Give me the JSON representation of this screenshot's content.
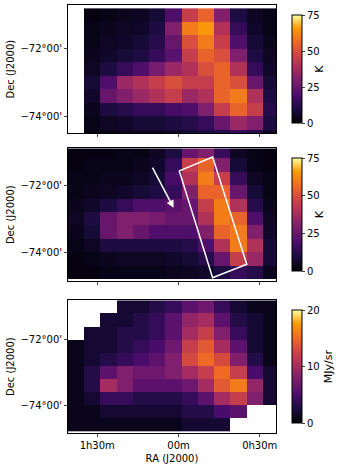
{
  "chart_data": [
    {
      "type": "heatmap",
      "y_label": "Dec (J2000)",
      "tick_labels": "y",
      "x": [
        1.63,
        1.53,
        1.43,
        1.33,
        1.23,
        1.13,
        1.03,
        0.93,
        0.83,
        0.73,
        0.63,
        0.53,
        0.43
      ],
      "y": [
        -71.0,
        -71.4,
        -71.8,
        -72.2,
        -72.6,
        -73.0,
        -73.4,
        -73.8,
        -74.2,
        -74.6
      ],
      "z": [
        [
          null,
          2,
          3,
          4,
          5,
          8,
          20,
          45,
          55,
          30,
          10,
          5,
          3
        ],
        [
          null,
          3,
          4,
          5,
          6,
          10,
          30,
          60,
          65,
          40,
          15,
          6,
          3
        ],
        [
          null,
          3,
          5,
          6,
          8,
          12,
          25,
          50,
          60,
          45,
          20,
          8,
          4
        ],
        [
          null,
          4,
          6,
          8,
          10,
          15,
          22,
          45,
          55,
          50,
          30,
          10,
          5
        ],
        [
          null,
          5,
          10,
          15,
          20,
          28,
          35,
          40,
          50,
          55,
          40,
          15,
          6
        ],
        [
          null,
          8,
          20,
          35,
          40,
          45,
          50,
          45,
          45,
          55,
          50,
          25,
          8
        ],
        [
          null,
          6,
          25,
          30,
          35,
          40,
          45,
          35,
          40,
          55,
          60,
          40,
          10
        ],
        [
          null,
          4,
          10,
          12,
          15,
          15,
          18,
          20,
          30,
          45,
          55,
          45,
          12
        ],
        [
          null,
          3,
          5,
          6,
          8,
          8,
          10,
          12,
          15,
          25,
          35,
          30,
          10
        ],
        [
          null,
          2,
          3,
          4,
          5,
          5,
          6,
          8,
          10,
          12,
          15,
          12,
          6
        ]
      ],
      "xlim": [
        1.68,
        0.4
      ],
      "xticks": [
        {
          "value": 1.5,
          "label": "1h30m"
        },
        {
          "value": 1.0,
          "label": "00m"
        },
        {
          "value": 0.5,
          "label": "0h30m"
        }
      ],
      "ylim": [
        -74.5,
        -70.7
      ],
      "yticks": [
        {
          "value": -72,
          "label": "−72°00'"
        },
        {
          "value": -74,
          "label": "−74°00'"
        }
      ],
      "colorbar": {
        "range": [
          0,
          75
        ],
        "ticks": [
          0,
          25,
          50,
          75
        ],
        "label": "K"
      }
    },
    {
      "type": "heatmap",
      "y_label": "Dec (J2000)",
      "tick_labels": "y",
      "x": [
        1.63,
        1.53,
        1.43,
        1.33,
        1.23,
        1.13,
        1.03,
        0.93,
        0.83,
        0.73,
        0.63,
        0.53,
        0.43
      ],
      "y": [
        -71.0,
        -71.4,
        -71.8,
        -72.2,
        -72.6,
        -73.0,
        -73.4,
        -73.8,
        -74.2,
        -74.6
      ],
      "z": [
        [
          2,
          2,
          2,
          3,
          3,
          5,
          10,
          25,
          30,
          15,
          5,
          3,
          2
        ],
        [
          2,
          3,
          3,
          3,
          4,
          6,
          15,
          45,
          55,
          30,
          8,
          3,
          2
        ],
        [
          3,
          3,
          4,
          4,
          5,
          8,
          18,
          40,
          60,
          45,
          15,
          5,
          3
        ],
        [
          3,
          4,
          5,
          6,
          8,
          10,
          15,
          30,
          55,
          55,
          25,
          8,
          3
        ],
        [
          4,
          6,
          10,
          15,
          20,
          20,
          22,
          25,
          45,
          60,
          40,
          12,
          4
        ],
        [
          5,
          10,
          25,
          30,
          30,
          28,
          25,
          25,
          40,
          60,
          55,
          20,
          5
        ],
        [
          4,
          8,
          25,
          30,
          25,
          20,
          20,
          20,
          30,
          55,
          60,
          30,
          6
        ],
        [
          3,
          5,
          10,
          10,
          10,
          10,
          10,
          12,
          20,
          40,
          60,
          40,
          8
        ],
        [
          2,
          3,
          4,
          5,
          5,
          5,
          6,
          8,
          12,
          25,
          45,
          35,
          8
        ],
        [
          2,
          2,
          3,
          3,
          3,
          3,
          4,
          5,
          6,
          10,
          15,
          12,
          4
        ]
      ],
      "xlim": [
        1.68,
        0.4
      ],
      "xticks": [
        {
          "value": 1.5,
          "label": "1h30m"
        },
        {
          "value": 1.0,
          "label": "00m"
        },
        {
          "value": 0.5,
          "label": "0h30m"
        }
      ],
      "ylim": [
        -74.85,
        -70.9
      ],
      "yticks": [
        {
          "value": -72,
          "label": "−72°00'"
        },
        {
          "value": -74,
          "label": "−74°00'"
        }
      ],
      "colorbar": {
        "range": [
          0,
          75
        ],
        "ticks": [
          0,
          25,
          50,
          75
        ],
        "label": "K"
      }
    },
    {
      "type": "heatmap",
      "x_label": "RA (J2000)",
      "y_label": "Dec (J2000)",
      "x": [
        1.63,
        1.53,
        1.43,
        1.33,
        1.23,
        1.13,
        1.03,
        0.93,
        0.83,
        0.73,
        0.63,
        0.53,
        0.43
      ],
      "y": [
        -71.0,
        -71.4,
        -71.8,
        -72.2,
        -72.6,
        -73.0,
        -73.4,
        -73.8,
        -74.2,
        -74.6
      ],
      "z": [
        [
          null,
          null,
          null,
          2,
          2,
          3,
          4,
          6,
          7,
          4,
          2,
          1,
          1
        ],
        [
          null,
          null,
          2,
          2,
          3,
          4,
          6,
          9,
          10,
          6,
          3,
          2,
          1
        ],
        [
          null,
          2,
          2,
          3,
          3,
          4,
          6,
          10,
          12,
          8,
          4,
          2,
          1
        ],
        [
          1,
          2,
          2,
          3,
          4,
          5,
          7,
          12,
          14,
          10,
          6,
          2,
          1
        ],
        [
          1,
          2,
          3,
          4,
          5,
          6,
          8,
          13,
          15,
          13,
          8,
          3,
          1
        ],
        [
          1,
          3,
          6,
          8,
          7,
          7,
          8,
          10,
          12,
          15,
          12,
          5,
          2
        ],
        [
          1,
          3,
          10,
          8,
          6,
          6,
          6,
          7,
          10,
          14,
          16,
          9,
          2
        ],
        [
          1,
          2,
          4,
          4,
          3,
          3,
          3,
          4,
          6,
          10,
          12,
          8,
          2
        ],
        [
          1,
          1,
          2,
          2,
          2,
          2,
          2,
          3,
          3,
          5,
          6,
          null,
          null
        ],
        [
          1,
          1,
          1,
          1,
          1,
          1,
          1,
          2,
          2,
          2,
          null,
          null,
          null
        ]
      ],
      "xlim": [
        1.68,
        0.4
      ],
      "xticks": [
        {
          "value": 1.5,
          "label": "1h30m"
        },
        {
          "value": 1.0,
          "label": "00m"
        },
        {
          "value": 0.5,
          "label": "0h30m"
        }
      ],
      "ylim": [
        -74.85,
        -70.8
      ],
      "yticks": [
        {
          "value": -72,
          "label": "−72°00'"
        },
        {
          "value": -74,
          "label": "−74°00'"
        }
      ],
      "colorbar": {
        "range": [
          0,
          20
        ],
        "ticks": [
          0,
          10,
          20
        ],
        "label": "MJy/sr"
      }
    }
  ]
}
